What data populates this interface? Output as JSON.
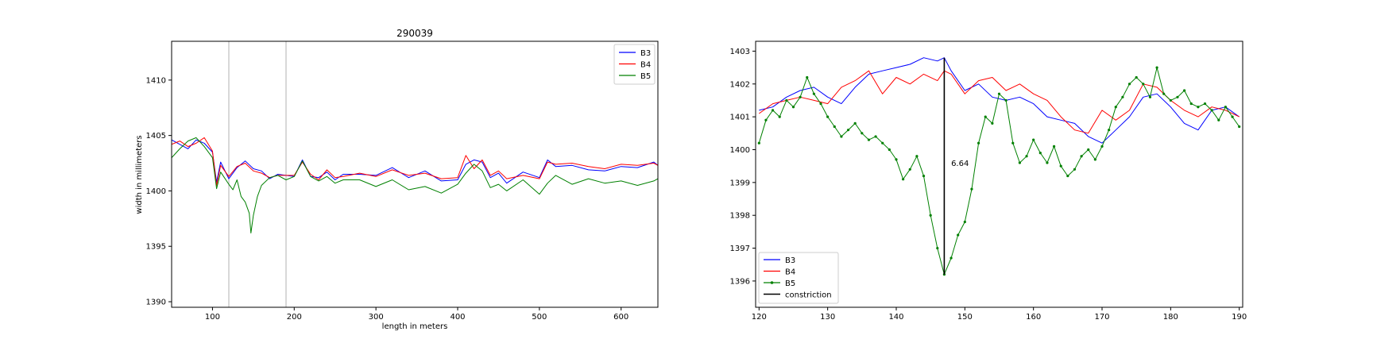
{
  "chart_data": [
    {
      "type": "line",
      "title": "290039",
      "xlabel": "length in meters",
      "ylabel": "width in millimeters",
      "xlim": [
        50,
        645
      ],
      "ylim": [
        1389.5,
        1413.5
      ],
      "xticks": [
        100,
        200,
        300,
        400,
        500,
        600
      ],
      "yticks": [
        1390,
        1395,
        1400,
        1405,
        1410
      ],
      "grid": false,
      "legend_position": "top-right",
      "vlines": [
        120,
        190
      ],
      "series": [
        {
          "name": "B3",
          "color": "#0000ff",
          "marker": "none",
          "x": [
            50,
            60,
            70,
            80,
            90,
            100,
            105,
            110,
            120,
            130,
            140,
            150,
            160,
            170,
            180,
            200,
            210,
            220,
            230,
            240,
            250,
            260,
            280,
            300,
            320,
            340,
            360,
            380,
            400,
            410,
            420,
            430,
            440,
            450,
            460,
            480,
            500,
            510,
            520,
            540,
            560,
            580,
            600,
            620,
            640,
            645
          ],
          "y": [
            1404.6,
            1404.2,
            1403.8,
            1404.6,
            1404.3,
            1403.5,
            1400.8,
            1402.6,
            1401.1,
            1402.1,
            1402.7,
            1402.0,
            1401.8,
            1401.1,
            1401.5,
            1401.3,
            1402.8,
            1401.3,
            1401.2,
            1401.7,
            1401.0,
            1401.5,
            1401.5,
            1401.4,
            1402.1,
            1401.2,
            1401.8,
            1400.9,
            1401.0,
            1402.4,
            1402.8,
            1402.6,
            1401.2,
            1401.6,
            1400.7,
            1401.7,
            1401.2,
            1402.8,
            1402.2,
            1402.3,
            1401.9,
            1401.8,
            1402.2,
            1402.1,
            1402.6,
            1402.3
          ]
        },
        {
          "name": "B4",
          "color": "#ff0000",
          "marker": "none",
          "x": [
            50,
            60,
            70,
            80,
            90,
            100,
            105,
            110,
            120,
            130,
            140,
            150,
            160,
            170,
            180,
            200,
            210,
            220,
            230,
            240,
            250,
            260,
            280,
            300,
            320,
            340,
            360,
            380,
            400,
            410,
            420,
            430,
            440,
            450,
            460,
            480,
            500,
            510,
            520,
            540,
            560,
            580,
            600,
            620,
            640,
            645
          ],
          "y": [
            1404.2,
            1404.5,
            1404.0,
            1404.3,
            1404.8,
            1403.6,
            1400.5,
            1402.3,
            1401.3,
            1402.2,
            1402.5,
            1401.8,
            1401.6,
            1401.2,
            1401.4,
            1401.4,
            1402.6,
            1401.5,
            1401.0,
            1401.9,
            1401.2,
            1401.3,
            1401.6,
            1401.3,
            1401.9,
            1401.4,
            1401.6,
            1401.1,
            1401.2,
            1403.2,
            1402.0,
            1402.8,
            1401.4,
            1401.8,
            1401.1,
            1401.4,
            1401.1,
            1402.6,
            1402.4,
            1402.5,
            1402.2,
            1402.0,
            1402.4,
            1402.3,
            1402.5,
            1402.3
          ]
        },
        {
          "name": "B5",
          "color": "#008000",
          "marker": "none",
          "x": [
            50,
            60,
            70,
            80,
            90,
            100,
            105,
            110,
            120,
            125,
            130,
            135,
            140,
            145,
            147,
            150,
            155,
            160,
            170,
            180,
            190,
            200,
            210,
            220,
            230,
            240,
            250,
            260,
            280,
            300,
            320,
            340,
            360,
            380,
            400,
            410,
            420,
            430,
            440,
            450,
            460,
            480,
            500,
            510,
            520,
            540,
            560,
            580,
            600,
            620,
            640,
            645
          ],
          "y": [
            1403.0,
            1403.8,
            1404.5,
            1404.8,
            1404.0,
            1403.0,
            1400.2,
            1401.7,
            1400.6,
            1400.1,
            1401.0,
            1399.5,
            1399.0,
            1398.0,
            1396.2,
            1397.8,
            1399.5,
            1400.5,
            1401.2,
            1401.4,
            1401.0,
            1401.3,
            1402.7,
            1401.3,
            1400.9,
            1401.3,
            1400.7,
            1401.0,
            1401.0,
            1400.4,
            1401.0,
            1400.1,
            1400.4,
            1399.8,
            1400.6,
            1401.6,
            1402.4,
            1401.8,
            1400.3,
            1400.6,
            1400.0,
            1401.0,
            1399.7,
            1400.7,
            1401.4,
            1400.6,
            1401.1,
            1400.7,
            1400.9,
            1400.5,
            1400.9,
            1401.1
          ]
        }
      ]
    },
    {
      "type": "line",
      "title": "",
      "xlabel": "",
      "ylabel": "",
      "xlim": [
        119.5,
        190.5
      ],
      "ylim": [
        1395.2,
        1403.3
      ],
      "xticks": [
        120,
        130,
        140,
        150,
        160,
        170,
        180,
        190
      ],
      "yticks": [
        1396,
        1397,
        1398,
        1399,
        1400,
        1401,
        1402,
        1403
      ],
      "grid": false,
      "legend_position": "bottom-left",
      "series": [
        {
          "name": "B3",
          "color": "#0000ff",
          "marker": "none",
          "x": [
            120,
            122,
            124,
            126,
            128,
            130,
            132,
            134,
            136,
            138,
            140,
            142,
            144,
            146,
            147,
            148,
            150,
            152,
            154,
            156,
            158,
            160,
            162,
            164,
            166,
            168,
            170,
            172,
            174,
            176,
            178,
            180,
            182,
            184,
            186,
            188,
            190
          ],
          "y": [
            1401.2,
            1401.3,
            1401.6,
            1401.8,
            1401.9,
            1401.6,
            1401.4,
            1401.9,
            1402.3,
            1402.4,
            1402.5,
            1402.6,
            1402.8,
            1402.7,
            1402.8,
            1402.4,
            1401.8,
            1402.0,
            1401.6,
            1401.5,
            1401.6,
            1401.4,
            1401.0,
            1400.9,
            1400.8,
            1400.4,
            1400.2,
            1400.6,
            1401.0,
            1401.6,
            1401.7,
            1401.3,
            1400.8,
            1400.6,
            1401.2,
            1401.3,
            1401.0
          ]
        },
        {
          "name": "B4",
          "color": "#ff0000",
          "marker": "none",
          "x": [
            120,
            122,
            124,
            126,
            128,
            130,
            132,
            134,
            136,
            138,
            140,
            142,
            144,
            146,
            147,
            148,
            150,
            152,
            154,
            156,
            158,
            160,
            162,
            164,
            166,
            168,
            170,
            172,
            174,
            176,
            178,
            180,
            182,
            184,
            186,
            188,
            190
          ],
          "y": [
            1401.1,
            1401.4,
            1401.5,
            1401.6,
            1401.5,
            1401.4,
            1401.9,
            1402.1,
            1402.4,
            1401.7,
            1402.2,
            1402.0,
            1402.3,
            1402.1,
            1402.4,
            1402.3,
            1401.7,
            1402.1,
            1402.2,
            1401.8,
            1402.0,
            1401.7,
            1401.5,
            1401.0,
            1400.6,
            1400.5,
            1401.2,
            1400.9,
            1401.2,
            1402.0,
            1401.9,
            1401.5,
            1401.2,
            1401.0,
            1401.3,
            1401.2,
            1401.0
          ]
        },
        {
          "name": "B5",
          "color": "#008000",
          "marker": "dot",
          "x": [
            120,
            121,
            122,
            123,
            124,
            125,
            126,
            127,
            128,
            129,
            130,
            131,
            132,
            133,
            134,
            135,
            136,
            137,
            138,
            139,
            140,
            141,
            142,
            143,
            144,
            145,
            146,
            147,
            148,
            149,
            150,
            151,
            152,
            153,
            154,
            155,
            156,
            157,
            158,
            159,
            160,
            161,
            162,
            163,
            164,
            165,
            166,
            167,
            168,
            169,
            170,
            171,
            172,
            173,
            174,
            175,
            176,
            177,
            178,
            179,
            180,
            181,
            182,
            183,
            184,
            185,
            186,
            187,
            188,
            189,
            190
          ],
          "y": [
            1400.2,
            1400.9,
            1401.2,
            1401.0,
            1401.5,
            1401.3,
            1401.6,
            1402.2,
            1401.7,
            1401.4,
            1401.0,
            1400.7,
            1400.4,
            1400.6,
            1400.8,
            1400.5,
            1400.3,
            1400.4,
            1400.2,
            1400.0,
            1399.7,
            1399.1,
            1399.4,
            1399.8,
            1399.2,
            1398.0,
            1397.0,
            1396.2,
            1396.7,
            1397.4,
            1397.8,
            1398.8,
            1400.2,
            1401.0,
            1400.8,
            1401.7,
            1401.5,
            1400.2,
            1399.6,
            1399.8,
            1400.3,
            1399.9,
            1399.6,
            1400.1,
            1399.5,
            1399.2,
            1399.4,
            1399.8,
            1400.0,
            1399.7,
            1400.1,
            1400.6,
            1401.3,
            1401.6,
            1402.0,
            1402.2,
            1402.0,
            1401.6,
            1402.5,
            1401.7,
            1401.5,
            1401.6,
            1401.8,
            1401.4,
            1401.3,
            1401.4,
            1401.2,
            1400.9,
            1401.3,
            1401.0,
            1400.7
          ]
        },
        {
          "name": "constriction",
          "color": "#000000",
          "marker": "none",
          "x": [
            147,
            147
          ],
          "y": [
            1396.2,
            1402.8
          ]
        }
      ],
      "annotations": [
        {
          "text": "6.64",
          "x": 148,
          "y": 1399.5
        }
      ]
    }
  ]
}
